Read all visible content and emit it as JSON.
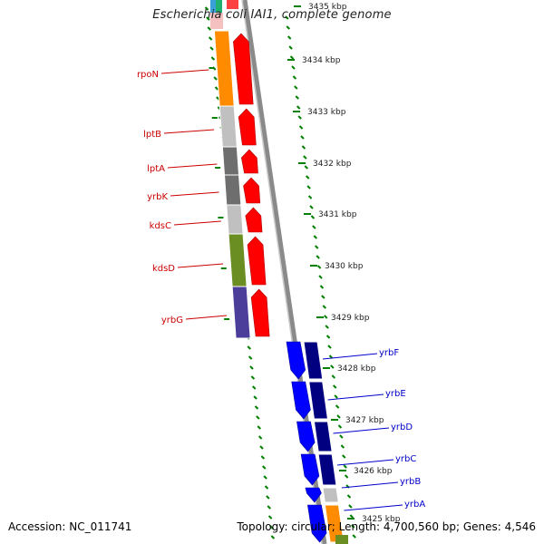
{
  "title": "Escherichia coli IAI1, complete genome",
  "accession_text": "Accession: NC_011741",
  "summary_text": "Topology: circular; Length: 4,700,560 bp; Genes: 4,546",
  "colors": {
    "forward_arrow": "#ff0000",
    "reverse_arrow_light": "#0000ff",
    "reverse_arrow_dark": "#000080",
    "tick_green": "#008000",
    "backbone": "#8a8a8a",
    "forward_label": "#cc0000",
    "reverse_label": "#0000cc"
  },
  "scale_labels": [
    "3434 kbp",
    "3433 kbp",
    "3432 kbp",
    "3431 kbp",
    "3430 kbp",
    "3429 kbp",
    "3428 kbp",
    "3427 kbp",
    "3426 kbp",
    "3425 kbp",
    "3435 kbp"
  ],
  "forward_genes": [
    {
      "label": "rpoN",
      "cog_color": "#ff8c00"
    },
    {
      "label": "lptB",
      "cog_color": "#c0c0c0"
    },
    {
      "label": "lptA",
      "cog_color": "#6e6e6e"
    },
    {
      "label": "yrbK",
      "cog_color": "#6e6e6e"
    },
    {
      "label": "kdsC",
      "cog_color": "#c0c0c0"
    },
    {
      "label": "kdsD",
      "cog_color": "#6b8e23"
    },
    {
      "label": "yrbG",
      "cog_color": "#4b3e9a"
    }
  ],
  "reverse_genes": [
    {
      "label": "yrbF"
    },
    {
      "label": "yrbE"
    },
    {
      "label": "yrbD"
    },
    {
      "label": "yrbC"
    },
    {
      "label": "yrbB"
    },
    {
      "label": "yrbA"
    }
  ]
}
